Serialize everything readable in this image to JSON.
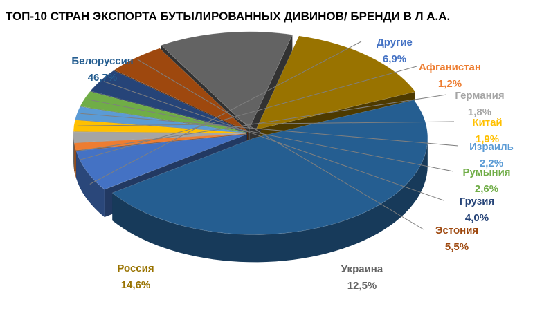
{
  "title": "ТОП-10 СТРАН ЭКСПОРТА БУТЫЛИРОВАННЫХ ДИВИНОВ/ БРЕНДИ В Л А.А.",
  "chart_data": {
    "type": "pie",
    "style": "3d-exploded",
    "legend": "none",
    "slices": [
      {
        "name": "Белоруссия",
        "value_label": "46,7%",
        "value": 46.7,
        "color": "#255E91"
      },
      {
        "name": "Другие",
        "value_label": "6,9%",
        "value": 6.9,
        "color": "#4472C4"
      },
      {
        "name": "Афганистан",
        "value_label": "1,2%",
        "value": 1.2,
        "color": "#ED7D31"
      },
      {
        "name": "Германия",
        "value_label": "1,8%",
        "value": 1.8,
        "color": "#A5A5A5"
      },
      {
        "name": "Китай",
        "value_label": "1,9%",
        "value": 1.9,
        "color": "#FFC000"
      },
      {
        "name": "Израиль",
        "value_label": "2,2%",
        "value": 2.2,
        "color": "#5B9BD5"
      },
      {
        "name": "Румыния",
        "value_label": "2,6%",
        "value": 2.6,
        "color": "#70AD47"
      },
      {
        "name": "Грузия",
        "value_label": "4,0%",
        "value": 4.0,
        "color": "#264478"
      },
      {
        "name": "Эстония",
        "value_label": "5,5%",
        "value": 5.5,
        "color": "#9E480E"
      },
      {
        "name": "Украина",
        "value_label": "12,5%",
        "value": 12.5,
        "color": "#636363"
      },
      {
        "name": "Россия",
        "value_label": "14,6%",
        "value": 14.6,
        "color": "#997300"
      }
    ]
  }
}
